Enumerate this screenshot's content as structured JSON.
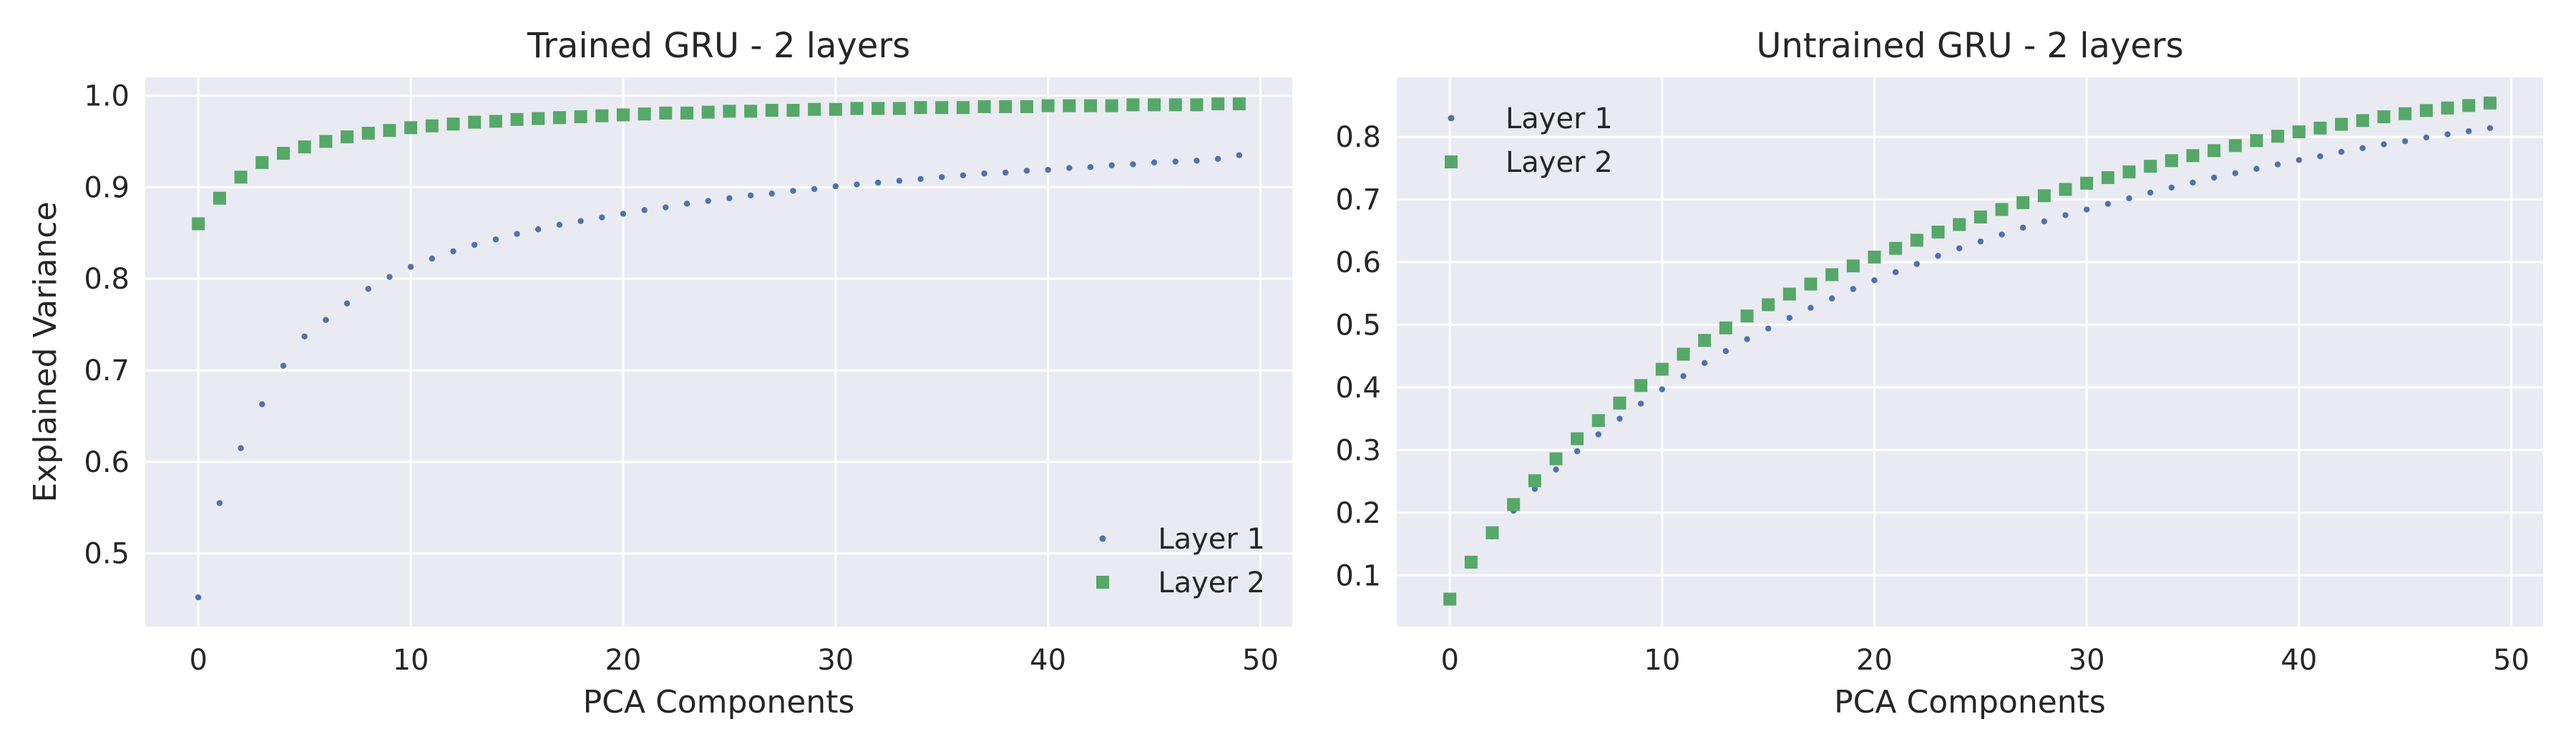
{
  "chart_data": [
    {
      "type": "scatter",
      "title": "Trained GRU - 2 layers",
      "xlabel": "PCA Components",
      "ylabel": "Explained Variance",
      "xlim": [
        -2.5,
        51.5
      ],
      "ylim": [
        0.42,
        1.02
      ],
      "xticks": [
        0,
        10,
        20,
        30,
        40,
        50
      ],
      "yticks": [
        0.5,
        0.6,
        0.7,
        0.8,
        0.9,
        1.0
      ],
      "ytick_labels": [
        "0.5",
        "0.6",
        "0.7",
        "0.8",
        "0.9",
        "1.0"
      ],
      "legend_position": "lower right",
      "background": "#eaeaf2",
      "grid": true,
      "series": [
        {
          "name": "Layer 1",
          "marker": "circle",
          "color": "#4c72b0",
          "x": [
            0,
            1,
            2,
            3,
            4,
            5,
            6,
            7,
            8,
            9,
            10,
            11,
            12,
            13,
            14,
            15,
            16,
            17,
            18,
            19,
            20,
            21,
            22,
            23,
            24,
            25,
            26,
            27,
            28,
            29,
            30,
            31,
            32,
            33,
            34,
            35,
            36,
            37,
            38,
            39,
            40,
            41,
            42,
            43,
            44,
            45,
            46,
            47,
            48,
            49
          ],
          "values": [
            0.452,
            0.555,
            0.615,
            0.663,
            0.705,
            0.737,
            0.755,
            0.773,
            0.789,
            0.802,
            0.813,
            0.822,
            0.83,
            0.837,
            0.843,
            0.849,
            0.854,
            0.859,
            0.863,
            0.867,
            0.871,
            0.875,
            0.878,
            0.882,
            0.885,
            0.888,
            0.891,
            0.893,
            0.896,
            0.898,
            0.901,
            0.903,
            0.905,
            0.907,
            0.909,
            0.911,
            0.913,
            0.915,
            0.916,
            0.918,
            0.919,
            0.921,
            0.922,
            0.924,
            0.925,
            0.927,
            0.928,
            0.929,
            0.931,
            0.935
          ]
        },
        {
          "name": "Layer 2",
          "marker": "square",
          "color": "#55a868",
          "x": [
            0,
            1,
            2,
            3,
            4,
            5,
            6,
            7,
            8,
            9,
            10,
            11,
            12,
            13,
            14,
            15,
            16,
            17,
            18,
            19,
            20,
            21,
            22,
            23,
            24,
            25,
            26,
            27,
            28,
            29,
            30,
            31,
            32,
            33,
            34,
            35,
            36,
            37,
            38,
            39,
            40,
            41,
            42,
            43,
            44,
            45,
            46,
            47,
            48,
            49
          ],
          "values": [
            0.86,
            0.888,
            0.911,
            0.927,
            0.937,
            0.944,
            0.95,
            0.955,
            0.959,
            0.962,
            0.965,
            0.967,
            0.969,
            0.971,
            0.972,
            0.974,
            0.975,
            0.976,
            0.977,
            0.978,
            0.979,
            0.98,
            0.981,
            0.981,
            0.982,
            0.983,
            0.983,
            0.984,
            0.984,
            0.985,
            0.985,
            0.986,
            0.986,
            0.986,
            0.987,
            0.987,
            0.987,
            0.988,
            0.988,
            0.988,
            0.989,
            0.989,
            0.989,
            0.989,
            0.99,
            0.99,
            0.99,
            0.99,
            0.991,
            0.991
          ]
        }
      ]
    },
    {
      "type": "scatter",
      "title": "Untrained GRU - 2 layers",
      "xlabel": "PCA Components",
      "ylabel": "",
      "xlim": [
        -2.5,
        51.5
      ],
      "ylim": [
        0.018,
        0.895
      ],
      "xticks": [
        0,
        10,
        20,
        30,
        40,
        50
      ],
      "yticks": [
        0.1,
        0.2,
        0.3,
        0.4,
        0.5,
        0.6,
        0.7,
        0.8
      ],
      "ytick_labels": [
        "0.1",
        "0.2",
        "0.3",
        "0.4",
        "0.5",
        "0.6",
        "0.7",
        "0.8"
      ],
      "legend_position": "upper left",
      "background": "#eaeaf2",
      "grid": true,
      "series": [
        {
          "name": "Layer 1",
          "marker": "circle",
          "color": "#4c72b0",
          "x": [
            0,
            1,
            2,
            3,
            4,
            5,
            6,
            7,
            8,
            9,
            10,
            11,
            12,
            13,
            14,
            15,
            16,
            17,
            18,
            19,
            20,
            21,
            22,
            23,
            24,
            25,
            26,
            27,
            28,
            29,
            30,
            31,
            32,
            33,
            34,
            35,
            36,
            37,
            38,
            39,
            40,
            41,
            42,
            43,
            44,
            45,
            46,
            47,
            48,
            49
          ],
          "values": [
            0.06,
            0.118,
            0.162,
            0.203,
            0.238,
            0.269,
            0.298,
            0.325,
            0.35,
            0.374,
            0.397,
            0.418,
            0.439,
            0.458,
            0.477,
            0.494,
            0.511,
            0.527,
            0.542,
            0.557,
            0.571,
            0.584,
            0.597,
            0.61,
            0.622,
            0.633,
            0.644,
            0.655,
            0.665,
            0.675,
            0.684,
            0.693,
            0.702,
            0.711,
            0.719,
            0.727,
            0.735,
            0.742,
            0.749,
            0.756,
            0.763,
            0.769,
            0.776,
            0.782,
            0.788,
            0.793,
            0.799,
            0.804,
            0.809,
            0.814
          ]
        },
        {
          "name": "Layer 2",
          "marker": "square",
          "color": "#55a868",
          "x": [
            0,
            1,
            2,
            3,
            4,
            5,
            6,
            7,
            8,
            9,
            10,
            11,
            12,
            13,
            14,
            15,
            16,
            17,
            18,
            19,
            20,
            21,
            22,
            23,
            24,
            25,
            26,
            27,
            28,
            29,
            30,
            31,
            32,
            33,
            34,
            35,
            36,
            37,
            38,
            39,
            40,
            41,
            42,
            43,
            44,
            45,
            46,
            47,
            48,
            49
          ],
          "values": [
            0.062,
            0.121,
            0.168,
            0.213,
            0.251,
            0.286,
            0.318,
            0.347,
            0.375,
            0.403,
            0.429,
            0.453,
            0.475,
            0.495,
            0.514,
            0.532,
            0.549,
            0.565,
            0.58,
            0.594,
            0.608,
            0.622,
            0.635,
            0.648,
            0.66,
            0.672,
            0.684,
            0.695,
            0.706,
            0.716,
            0.726,
            0.735,
            0.744,
            0.753,
            0.762,
            0.77,
            0.778,
            0.786,
            0.794,
            0.801,
            0.808,
            0.814,
            0.82,
            0.826,
            0.832,
            0.837,
            0.842,
            0.846,
            0.85,
            0.854
          ]
        }
      ]
    }
  ]
}
